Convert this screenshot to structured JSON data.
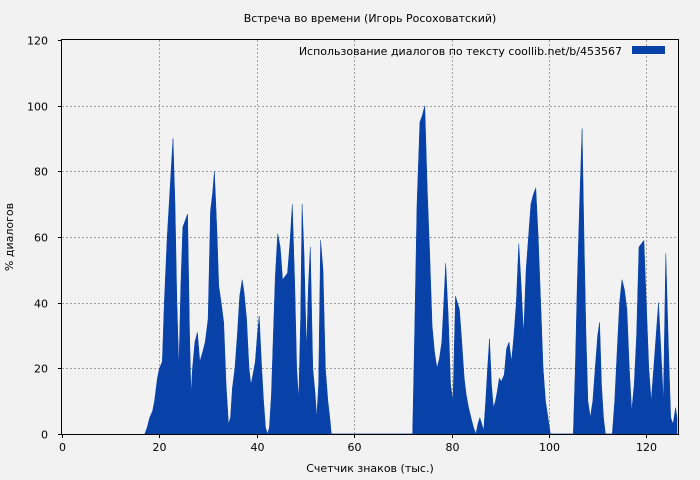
{
  "chart_data": {
    "type": "area",
    "title": "Встреча во времени (Игорь Росоховатский)",
    "xlabel": "Счетчик знаков (тыс.)",
    "ylabel": "% диалогов",
    "xlim": [
      0,
      126.5
    ],
    "ylim": [
      0,
      120
    ],
    "xticks": [
      0,
      20,
      40,
      60,
      80,
      100,
      120
    ],
    "yticks": [
      0,
      20,
      40,
      60,
      80,
      100,
      120
    ],
    "grid": true,
    "legend_position": "top-right",
    "series": [
      {
        "name": "Использование диалогов по тексту  coollib.net/b/453567",
        "color": "#0842a9",
        "x": [
          17.0,
          17.5,
          18.0,
          18.6,
          19.0,
          19.6,
          20.0,
          20.6,
          21.0,
          21.6,
          22.2,
          22.8,
          23.2,
          23.6,
          24.0,
          24.4,
          24.8,
          25.3,
          25.8,
          26.2,
          26.5,
          26.8,
          27.3,
          27.8,
          28.3,
          28.9,
          29.4,
          30.0,
          30.5,
          30.9,
          31.3,
          31.8,
          32.2,
          32.7,
          33.2,
          33.7,
          34.2,
          34.6,
          35.0,
          35.5,
          36.0,
          36.5,
          37.0,
          37.4,
          37.9,
          38.4,
          38.8,
          39.2,
          39.7,
          40.1,
          40.5,
          41.0,
          41.4,
          41.8,
          42.2,
          42.6,
          43.0,
          43.4,
          43.8,
          44.3,
          44.8,
          45.3,
          45.8,
          46.3,
          46.8,
          47.3,
          47.8,
          48.2,
          48.6,
          49.0,
          49.3,
          49.7,
          50.2,
          50.6,
          51.0,
          51.5,
          52.0,
          52.3,
          52.7,
          53.1,
          53.6,
          54.1,
          54.6,
          55.0,
          55.3,
          72.0,
          72.4,
          72.9,
          73.5,
          74.0,
          74.5,
          75.0,
          75.5,
          76.0,
          76.5,
          77.0,
          77.5,
          78.0,
          78.4,
          78.8,
          79.3,
          79.8,
          80.3,
          80.8,
          81.2,
          81.6,
          82.1,
          82.6,
          83.0,
          83.5,
          84.0,
          84.5,
          85.0,
          85.4,
          85.8,
          86.2,
          86.6,
          87.0,
          87.4,
          87.8,
          88.2,
          88.6,
          89.0,
          89.4,
          89.8,
          90.2,
          90.8,
          91.3,
          91.8,
          92.3,
          92.8,
          93.3,
          93.8,
          94.3,
          94.8,
          95.3,
          95.8,
          96.3,
          96.8,
          97.3,
          97.8,
          98.3,
          98.8,
          99.3,
          99.8,
          100.3,
          100.8,
          101.3,
          101.8,
          102.2,
          102.6,
          105.0,
          105.4,
          105.8,
          106.3,
          106.8,
          107.2,
          107.6,
          108.0,
          108.5,
          109.0,
          109.5,
          110.0,
          110.4,
          110.8,
          111.2,
          111.6,
          113.0,
          113.5,
          114.0,
          114.5,
          115.0,
          115.5,
          116.0,
          116.5,
          117.0,
          117.5,
          118.0,
          118.5,
          119.0,
          119.5,
          120.0,
          120.5,
          121.0,
          121.5,
          122.0,
          122.5,
          123.0,
          123.5,
          124.0,
          124.5,
          125.0,
          125.5,
          126.0,
          126.3
        ],
        "y": [
          0,
          2,
          5,
          7,
          10,
          17,
          20,
          22,
          40,
          60,
          75,
          90,
          70,
          40,
          20,
          45,
          63,
          65,
          67,
          30,
          12,
          20,
          28,
          31,
          22,
          25,
          28,
          35,
          68,
          73,
          80,
          62,
          45,
          40,
          34,
          15,
          3,
          5,
          14,
          20,
          30,
          42,
          47,
          43,
          35,
          20,
          15,
          18,
          22,
          30,
          36,
          20,
          10,
          2,
          0,
          2,
          12,
          30,
          48,
          61,
          57,
          47,
          48,
          49,
          58,
          70,
          45,
          20,
          10,
          35,
          70,
          55,
          25,
          45,
          57,
          20,
          12,
          5,
          15,
          59,
          50,
          20,
          10,
          5,
          0,
          0,
          30,
          70,
          95,
          97,
          100,
          75,
          55,
          33,
          25,
          20,
          23,
          28,
          40,
          52,
          36,
          15,
          10,
          42,
          40,
          38,
          28,
          17,
          12,
          8,
          5,
          2,
          0,
          3,
          5,
          3,
          1,
          10,
          20,
          29,
          15,
          8,
          10,
          13,
          17,
          16,
          18,
          26,
          28,
          22,
          30,
          40,
          58,
          45,
          30,
          50,
          60,
          70,
          73,
          75,
          60,
          40,
          20,
          10,
          5,
          0,
          0,
          0,
          0,
          0,
          0,
          0,
          20,
          45,
          70,
          93,
          60,
          30,
          10,
          5,
          10,
          20,
          30,
          34,
          15,
          5,
          0,
          0,
          10,
          25,
          40,
          47,
          44,
          38,
          20,
          7,
          15,
          30,
          57,
          58,
          59,
          40,
          20,
          10,
          20,
          30,
          40,
          25,
          10,
          55,
          28,
          5,
          3,
          8,
          5
        ]
      }
    ]
  }
}
